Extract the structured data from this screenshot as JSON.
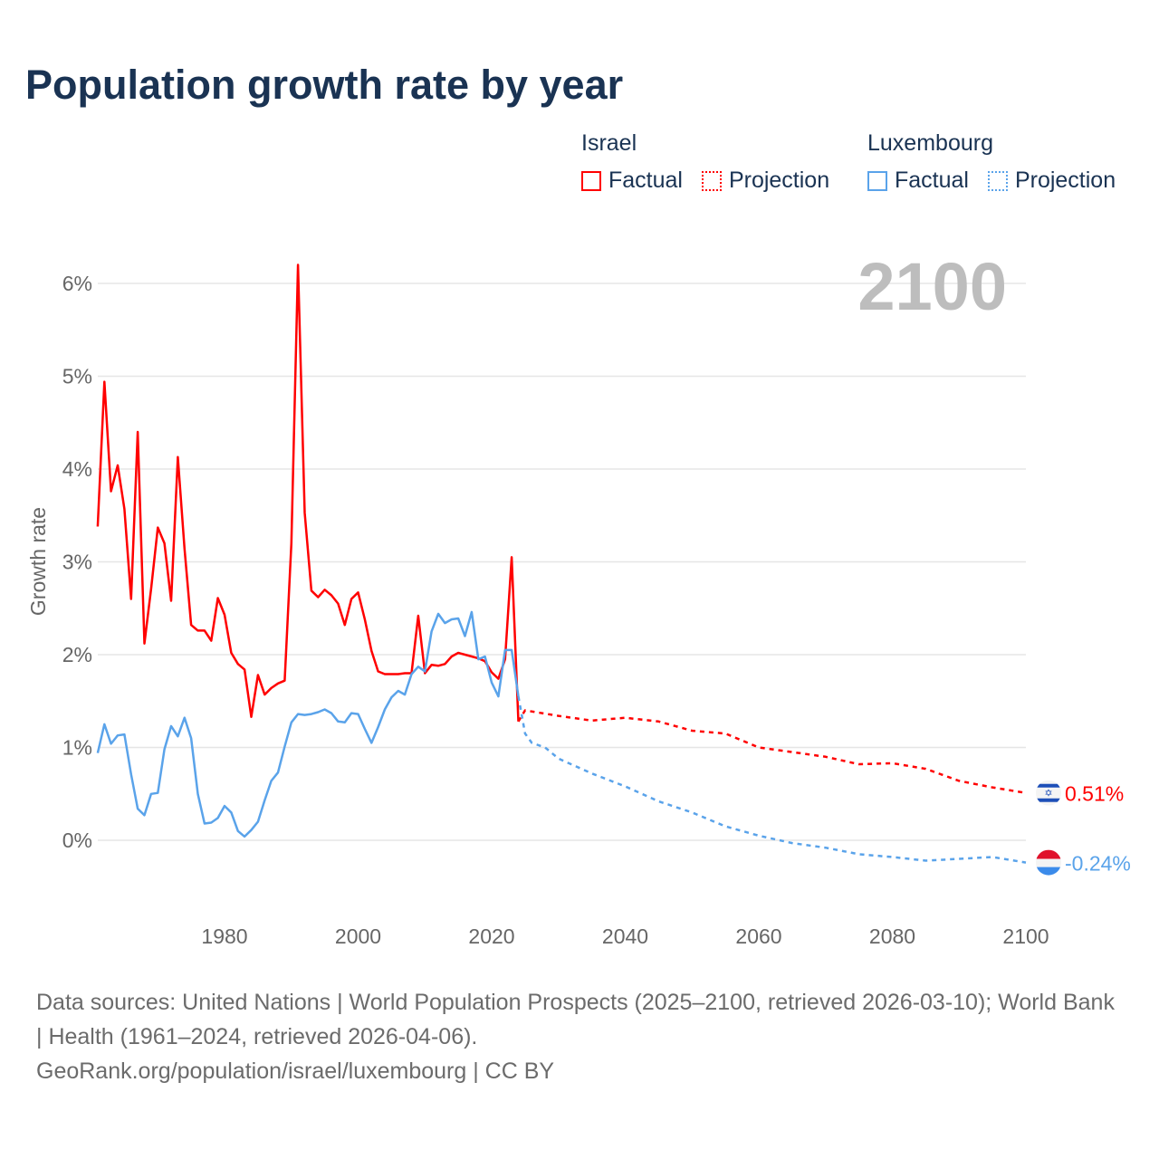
{
  "title": "Population growth rate by year",
  "legend": {
    "countries": [
      {
        "name": "Israel",
        "factual_label": "Factual",
        "projection_label": "Projection",
        "color": "#ff0000"
      },
      {
        "name": "Luxembourg",
        "factual_label": "Factual",
        "projection_label": "Projection",
        "color": "#5aa3ea"
      }
    ]
  },
  "chart_data": {
    "type": "line",
    "title": "Population growth rate by year",
    "current_year_label": "2100",
    "xlabel": "",
    "ylabel": "Growth rate",
    "xlim": [
      1961,
      2100
    ],
    "ylim": [
      -0.8,
      6.2
    ],
    "x_ticks": [
      "1980",
      "2000",
      "2020",
      "2040",
      "2060",
      "2080",
      "2100"
    ],
    "y_ticks": [
      "0%",
      "1%",
      "2%",
      "3%",
      "4%",
      "5%",
      "6%"
    ],
    "grid": true,
    "legend_position": "top-right",
    "series": [
      {
        "name": "Israel",
        "kind": "factual",
        "color": "#ff0000",
        "x_start": 1961,
        "values": [
          3.38,
          4.94,
          3.76,
          4.04,
          3.57,
          2.6,
          4.4,
          2.12,
          2.71,
          3.37,
          3.2,
          2.58,
          4.13,
          3.14,
          2.32,
          2.26,
          2.26,
          2.15,
          2.61,
          2.43,
          2.02,
          1.9,
          1.84,
          1.33,
          1.78,
          1.57,
          1.64,
          1.69,
          1.72,
          3.2,
          6.2,
          3.53,
          2.69,
          2.62,
          2.7,
          2.64,
          2.55,
          2.32,
          2.6,
          2.67,
          2.38,
          2.04,
          1.82,
          1.79,
          1.79,
          1.79,
          1.8,
          1.8,
          2.42,
          1.8,
          1.89,
          1.88,
          1.9,
          1.98,
          2.02,
          2.0,
          1.98,
          1.96,
          1.93,
          1.81,
          1.74,
          1.95,
          3.05,
          1.28
        ]
      },
      {
        "name": "Luxembourg",
        "kind": "factual",
        "color": "#5aa3ea",
        "x_start": 1961,
        "values": [
          0.94,
          1.25,
          1.04,
          1.13,
          1.14,
          0.71,
          0.34,
          0.27,
          0.5,
          0.51,
          0.98,
          1.23,
          1.12,
          1.32,
          1.1,
          0.5,
          0.18,
          0.19,
          0.24,
          0.37,
          0.3,
          0.1,
          0.04,
          0.11,
          0.2,
          0.43,
          0.64,
          0.73,
          1.01,
          1.27,
          1.36,
          1.35,
          1.36,
          1.38,
          1.41,
          1.37,
          1.28,
          1.27,
          1.37,
          1.36,
          1.2,
          1.05,
          1.22,
          1.41,
          1.54,
          1.61,
          1.57,
          1.79,
          1.87,
          1.82,
          2.25,
          2.44,
          2.34,
          2.38,
          2.39,
          2.2,
          2.46,
          1.95,
          1.98,
          1.7,
          1.55,
          2.05,
          2.05,
          1.55
        ]
      },
      {
        "name": "Israel",
        "kind": "projection",
        "color": "#ff0000",
        "x": [
          2025,
          2030,
          2035,
          2040,
          2045,
          2050,
          2055,
          2060,
          2065,
          2070,
          2075,
          2080,
          2085,
          2090,
          2095,
          2100
        ],
        "values": [
          1.4,
          1.34,
          1.29,
          1.32,
          1.28,
          1.18,
          1.15,
          1.0,
          0.95,
          0.9,
          0.82,
          0.83,
          0.77,
          0.64,
          0.57,
          0.51
        ]
      },
      {
        "name": "Luxembourg",
        "kind": "projection",
        "color": "#5aa3ea",
        "x": [
          2025,
          2026,
          2028,
          2030,
          2035,
          2040,
          2045,
          2050,
          2055,
          2060,
          2065,
          2070,
          2075,
          2080,
          2085,
          2090,
          2095,
          2100
        ],
        "values": [
          1.15,
          1.05,
          1.0,
          0.88,
          0.72,
          0.58,
          0.42,
          0.3,
          0.15,
          0.05,
          -0.03,
          -0.08,
          -0.15,
          -0.18,
          -0.22,
          -0.2,
          -0.18,
          -0.24
        ]
      }
    ],
    "end_labels": [
      {
        "country": "Israel",
        "flag": "israel-flag-icon",
        "text": "0.51%",
        "value": 0.51,
        "color": "#ff0000"
      },
      {
        "country": "Luxembourg",
        "flag": "luxembourg-flag-icon",
        "text": "-0.24%",
        "value": -0.24,
        "color": "#5aa3ea"
      }
    ]
  },
  "footer": {
    "sources": "Data sources: United Nations | World Population Prospects (2025–2100, retrieved 2026-03-10); World Bank | Health (1961–2024, retrieved 2026-04-06).",
    "link": "GeoRank.org/population/israel/luxembourg | CC BY"
  }
}
